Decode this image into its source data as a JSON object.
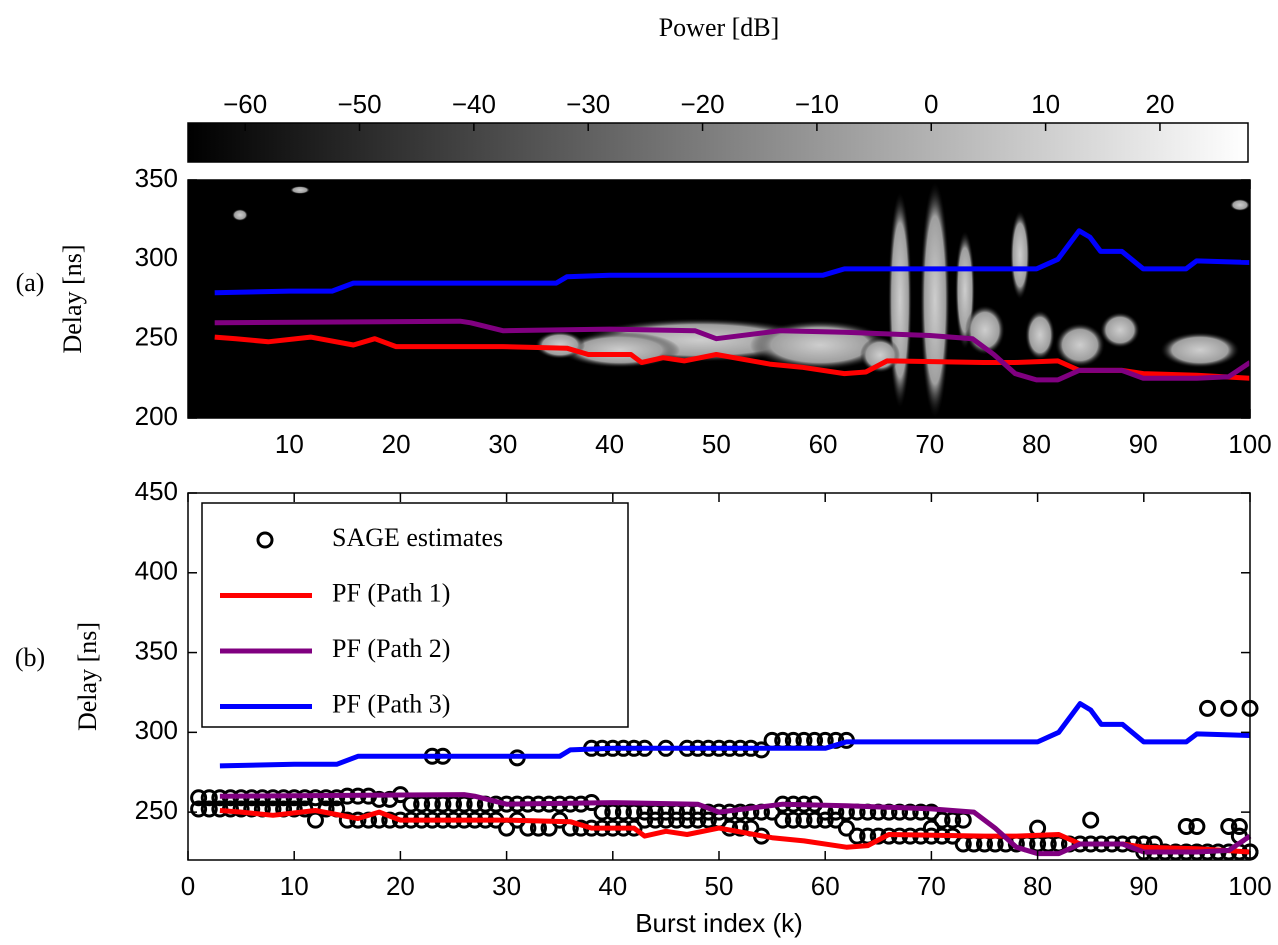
{
  "chart_data": [
    {
      "type": "line",
      "panel_label": "(a)",
      "ylabel": "Delay [ns]",
      "background": "#000000",
      "xlim": [
        0.5,
        100
      ],
      "xticks": [
        10,
        20,
        30,
        40,
        50,
        60,
        70,
        80,
        90,
        100
      ],
      "ylim": [
        200,
        350
      ],
      "yticks": [
        200,
        250,
        300,
        350
      ],
      "colorbar": {
        "label": "Power [dB]",
        "lim": [
          -65,
          27.7
        ],
        "colors": [
          "#000000",
          "#ffffff"
        ],
        "ticks": [
          {
            "value": -60,
            "label": "−60"
          },
          {
            "value": -50,
            "label": "−50"
          },
          {
            "value": -40,
            "label": "−40"
          },
          {
            "value": -30,
            "label": "−30"
          },
          {
            "value": -20,
            "label": "−20"
          },
          {
            "value": -10,
            "label": "−10"
          },
          0,
          10,
          20
        ]
      },
      "series": [
        {
          "color": "#ff0000",
          "x": [
            3,
            5,
            8,
            12,
            16,
            18,
            20,
            30,
            36,
            38,
            42,
            43,
            45,
            47,
            50,
            55,
            58,
            62,
            64,
            66,
            75,
            78,
            82,
            84,
            88,
            90,
            95,
            100
          ],
          "values": [
            251,
            250,
            248,
            251,
            246,
            250,
            245,
            245,
            244,
            240,
            240,
            235,
            238,
            236,
            240,
            234,
            232,
            228,
            229,
            236,
            235,
            235,
            236,
            230,
            230,
            228,
            227,
            225
          ]
        },
        {
          "color": "#800080",
          "x": [
            3,
            26,
            27,
            30,
            40,
            48,
            50,
            56,
            62,
            70,
            74,
            76,
            78,
            80,
            82,
            84,
            88,
            90,
            95,
            98,
            100
          ],
          "values": [
            260,
            261,
            260,
            255,
            256,
            255,
            250,
            255,
            254,
            252,
            250,
            240,
            228,
            224,
            224,
            230,
            230,
            225,
            225,
            226,
            235
          ]
        },
        {
          "color": "#0000ff",
          "x": [
            3,
            10,
            14,
            16,
            25,
            35,
            36,
            40,
            60,
            62,
            80,
            82,
            84,
            85,
            86,
            88,
            90,
            94,
            95,
            100
          ],
          "values": [
            279,
            280,
            280,
            285,
            285,
            285,
            289,
            290,
            290,
            294,
            294,
            300,
            318,
            314,
            305,
            305,
            294,
            294,
            299,
            298
          ]
        }
      ]
    },
    {
      "type": "line",
      "panel_label": "(b)",
      "ylabel": "Delay [ns]",
      "xlabel": "Burst index (k)",
      "legend": "upper left",
      "xlim": [
        0,
        100
      ],
      "xticks": [
        0,
        10,
        20,
        30,
        40,
        50,
        60,
        70,
        80,
        90,
        100
      ],
      "ylim": [
        220,
        450
      ],
      "yticks": [
        250,
        300,
        350,
        400,
        450
      ],
      "series": [
        {
          "name": "SAGE estimates",
          "color": "#000000",
          "marker": "circle",
          "x": [
            1,
            1,
            2,
            2,
            3,
            3,
            4,
            4,
            5,
            5,
            6,
            6,
            7,
            7,
            8,
            8,
            9,
            9,
            10,
            10,
            11,
            11,
            12,
            12,
            13,
            13,
            14,
            14,
            15,
            15,
            16,
            16,
            17,
            17,
            18,
            18,
            19,
            19,
            20,
            20,
            21,
            21,
            22,
            22,
            23,
            23,
            23,
            24,
            24,
            24,
            25,
            25,
            26,
            26,
            27,
            27,
            28,
            28,
            29,
            29,
            30,
            30,
            31,
            31,
            31,
            32,
            32,
            33,
            33,
            34,
            34,
            35,
            35,
            36,
            36,
            37,
            37,
            38,
            38,
            38,
            39,
            39,
            39,
            40,
            40,
            40,
            41,
            41,
            41,
            42,
            42,
            42,
            43,
            43,
            43,
            44,
            44,
            45,
            45,
            45,
            46,
            46,
            47,
            47,
            47,
            48,
            48,
            48,
            49,
            49,
            49,
            50,
            50,
            50,
            51,
            51,
            51,
            52,
            52,
            52,
            53,
            53,
            53,
            54,
            54,
            54,
            55,
            55,
            56,
            56,
            56,
            57,
            57,
            57,
            58,
            58,
            58,
            59,
            59,
            59,
            60,
            60,
            60,
            61,
            61,
            61,
            62,
            62,
            62,
            63,
            63,
            64,
            64,
            65,
            65,
            66,
            66,
            67,
            67,
            68,
            68,
            69,
            69,
            70,
            70,
            70,
            71,
            71,
            72,
            72,
            73,
            73,
            74,
            75,
            76,
            77,
            78,
            79,
            80,
            80,
            81,
            82,
            83,
            84,
            85,
            85,
            86,
            87,
            88,
            89,
            90,
            90,
            91,
            91,
            92,
            93,
            94,
            94,
            95,
            95,
            96,
            96,
            97,
            98,
            98,
            98,
            99,
            99,
            99,
            100,
            100,
            100
          ],
          "values": [
            259,
            252,
            259,
            252,
            259,
            252,
            259,
            252,
            259,
            252,
            259,
            252,
            259,
            252,
            259,
            252,
            259,
            252,
            259,
            252,
            259,
            252,
            259,
            245,
            259,
            252,
            259,
            252,
            260,
            245,
            260,
            245,
            260,
            245,
            258,
            245,
            258,
            245,
            261,
            245,
            255,
            245,
            255,
            245,
            255,
            245,
            285,
            255,
            245,
            285,
            255,
            245,
            255,
            245,
            255,
            245,
            255,
            245,
            255,
            245,
            255,
            240,
            255,
            245,
            284,
            255,
            240,
            255,
            240,
            255,
            240,
            255,
            245,
            255,
            240,
            255,
            240,
            256,
            240,
            290,
            250,
            240,
            290,
            250,
            240,
            290,
            250,
            240,
            290,
            250,
            240,
            290,
            250,
            245,
            290,
            250,
            245,
            250,
            245,
            290,
            250,
            245,
            250,
            245,
            290,
            250,
            245,
            290,
            250,
            245,
            290,
            250,
            245,
            290,
            250,
            240,
            290,
            250,
            240,
            290,
            250,
            240,
            290,
            250,
            235,
            289,
            250,
            295,
            255,
            245,
            295,
            255,
            245,
            295,
            255,
            245,
            295,
            255,
            245,
            295,
            250,
            245,
            295,
            250,
            245,
            295,
            250,
            240,
            295,
            250,
            235,
            250,
            235,
            250,
            235,
            250,
            235,
            250,
            235,
            250,
            235,
            250,
            235,
            250,
            240,
            235,
            245,
            235,
            245,
            235,
            245,
            230,
            230,
            230,
            230,
            230,
            230,
            230,
            230,
            240,
            230,
            230,
            230,
            230,
            230,
            245,
            230,
            230,
            230,
            230,
            230,
            225,
            230,
            225,
            225,
            225,
            225,
            241,
            225,
            241,
            225,
            315,
            225,
            225,
            315,
            241,
            225,
            241,
            235,
            225,
            315,
            225
          ]
        },
        {
          "name": "PF (Path 1)",
          "color": "#ff0000",
          "x": [
            3,
            5,
            8,
            12,
            16,
            18,
            20,
            30,
            36,
            38,
            42,
            43,
            45,
            47,
            50,
            55,
            58,
            62,
            64,
            66,
            75,
            78,
            82,
            84,
            88,
            90,
            95,
            100
          ],
          "values": [
            251,
            250,
            248,
            251,
            246,
            250,
            245,
            245,
            244,
            240,
            240,
            235,
            238,
            236,
            240,
            234,
            232,
            228,
            229,
            236,
            235,
            235,
            236,
            230,
            230,
            228,
            227,
            225
          ]
        },
        {
          "name": "PF (Path 2)",
          "color": "#800080",
          "x": [
            3,
            26,
            27,
            30,
            40,
            48,
            50,
            56,
            62,
            70,
            74,
            76,
            78,
            80,
            82,
            84,
            88,
            90,
            95,
            98,
            100
          ],
          "values": [
            260,
            261,
            260,
            255,
            256,
            255,
            250,
            255,
            254,
            252,
            250,
            240,
            228,
            224,
            224,
            230,
            230,
            225,
            225,
            226,
            235
          ]
        },
        {
          "name": "PF (Path 3)",
          "color": "#0000ff",
          "x": [
            3,
            10,
            14,
            16,
            25,
            35,
            36,
            40,
            60,
            62,
            80,
            82,
            84,
            85,
            86,
            88,
            90,
            94,
            95,
            100
          ],
          "values": [
            279,
            280,
            280,
            285,
            285,
            285,
            289,
            290,
            290,
            294,
            294,
            300,
            318,
            314,
            305,
            305,
            294,
            294,
            299,
            298
          ]
        }
      ]
    }
  ]
}
